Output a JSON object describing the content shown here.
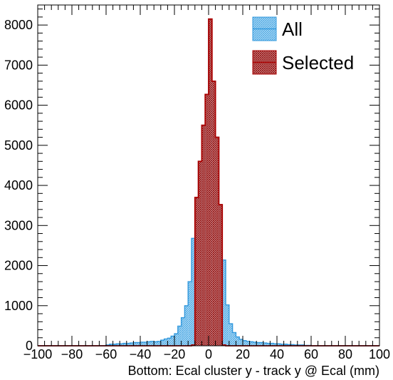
{
  "chart_data": {
    "type": "bar",
    "title": "",
    "xlabel": "Bottom: Ecal cluster y - track y @ Ecal (mm)",
    "ylabel": "",
    "xlim": [
      -100,
      100
    ],
    "ylim": [
      0,
      8500
    ],
    "bin_width": 2,
    "x_ticks": [
      -100,
      -80,
      -60,
      -40,
      -20,
      0,
      20,
      40,
      60,
      80,
      100
    ],
    "x_tick_labels": [
      "−100",
      "−80",
      "−60",
      "−40",
      "−20",
      "0",
      "20",
      "40",
      "60",
      "80",
      "100"
    ],
    "y_ticks": [
      0,
      1000,
      2000,
      3000,
      4000,
      5000,
      6000,
      7000,
      8000
    ],
    "y_tick_labels": [
      "0",
      "1000",
      "2000",
      "3000",
      "4000",
      "5000",
      "6000",
      "7000",
      "8000"
    ],
    "grid": false,
    "legend_position": "top-right",
    "series": [
      {
        "name": "All",
        "color": "#3399dd",
        "fill": "#8fcbf0",
        "bins": [
          {
            "x": -60,
            "y": 20
          },
          {
            "x": -58,
            "y": 40
          },
          {
            "x": -56,
            "y": 40
          },
          {
            "x": -54,
            "y": 50
          },
          {
            "x": -52,
            "y": 50
          },
          {
            "x": -50,
            "y": 60
          },
          {
            "x": -48,
            "y": 60
          },
          {
            "x": -46,
            "y": 70
          },
          {
            "x": -44,
            "y": 80
          },
          {
            "x": -42,
            "y": 80
          },
          {
            "x": -40,
            "y": 90
          },
          {
            "x": -38,
            "y": 90
          },
          {
            "x": -36,
            "y": 100
          },
          {
            "x": -34,
            "y": 110
          },
          {
            "x": -32,
            "y": 100
          },
          {
            "x": -30,
            "y": 110
          },
          {
            "x": -28,
            "y": 140
          },
          {
            "x": -26,
            "y": 170
          },
          {
            "x": -24,
            "y": 190
          },
          {
            "x": -22,
            "y": 240
          },
          {
            "x": -20,
            "y": 300
          },
          {
            "x": -18,
            "y": 490
          },
          {
            "x": -16,
            "y": 700
          },
          {
            "x": -14,
            "y": 1000
          },
          {
            "x": -12,
            "y": 1600
          },
          {
            "x": -10,
            "y": 2680
          },
          {
            "x": -8,
            "y": 3700
          },
          {
            "x": -6,
            "y": 4600
          },
          {
            "x": -4,
            "y": 5500
          },
          {
            "x": -2,
            "y": 6270
          },
          {
            "x": 0,
            "y": 8150
          },
          {
            "x": 2,
            "y": 6600
          },
          {
            "x": 4,
            "y": 5200
          },
          {
            "x": 6,
            "y": 3520
          },
          {
            "x": 8,
            "y": 2140
          },
          {
            "x": 10,
            "y": 1020
          },
          {
            "x": 12,
            "y": 550
          },
          {
            "x": 14,
            "y": 330
          },
          {
            "x": 16,
            "y": 220
          },
          {
            "x": 18,
            "y": 160
          },
          {
            "x": 20,
            "y": 130
          },
          {
            "x": 22,
            "y": 110
          },
          {
            "x": 24,
            "y": 100
          },
          {
            "x": 26,
            "y": 90
          },
          {
            "x": 28,
            "y": 80
          },
          {
            "x": 30,
            "y": 80
          },
          {
            "x": 32,
            "y": 70
          },
          {
            "x": 34,
            "y": 60
          },
          {
            "x": 36,
            "y": 60
          },
          {
            "x": 38,
            "y": 50
          },
          {
            "x": 40,
            "y": 50
          },
          {
            "x": 42,
            "y": 40
          },
          {
            "x": 44,
            "y": 40
          },
          {
            "x": 46,
            "y": 30
          },
          {
            "x": 48,
            "y": 30
          },
          {
            "x": 50,
            "y": 20
          },
          {
            "x": 52,
            "y": 20
          },
          {
            "x": 54,
            "y": 20
          },
          {
            "x": 56,
            "y": 10
          },
          {
            "x": 58,
            "y": 10
          }
        ]
      },
      {
        "name": "Selected",
        "color": "#aa0000",
        "fill": "#c97a7a",
        "bins": [
          {
            "x": -10,
            "y": 20
          },
          {
            "x": -8,
            "y": 3700
          },
          {
            "x": -6,
            "y": 4600
          },
          {
            "x": -4,
            "y": 5500
          },
          {
            "x": -2,
            "y": 6270
          },
          {
            "x": 0,
            "y": 8150
          },
          {
            "x": 2,
            "y": 6600
          },
          {
            "x": 4,
            "y": 5200
          },
          {
            "x": 6,
            "y": 3520
          },
          {
            "x": 8,
            "y": 20
          }
        ]
      }
    ]
  },
  "legend": {
    "all_label": "All",
    "selected_label": "Selected"
  }
}
